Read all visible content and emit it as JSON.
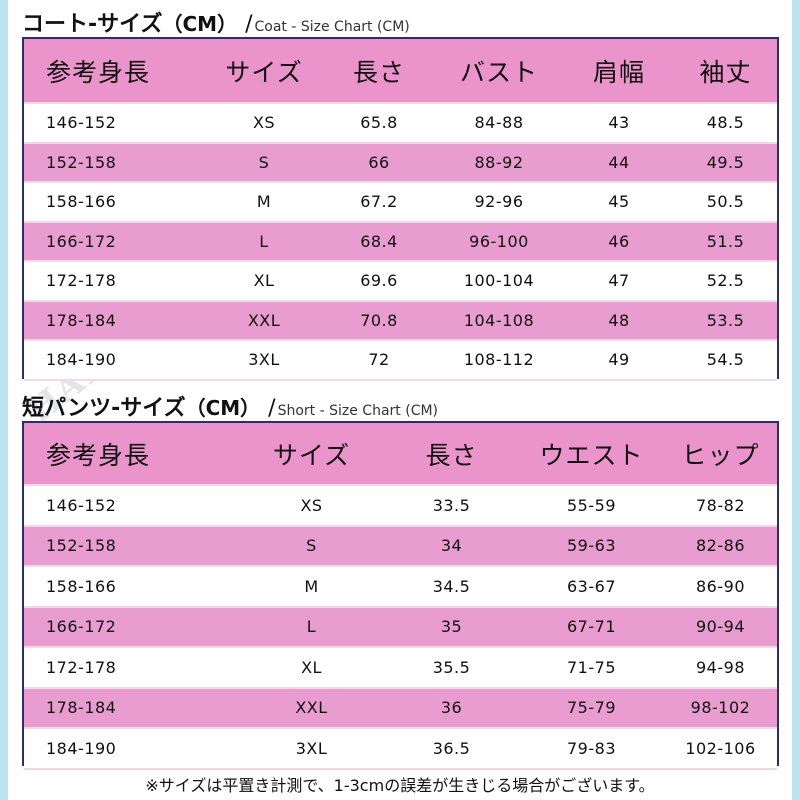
{
  "coat": {
    "title_jp": "コート-サイズ",
    "title_cm": "（CM）",
    "slash": "/",
    "title_en": "Coat - Size Chart (CM)",
    "headers": [
      "参考身長",
      "サイズ",
      "長さ",
      "バスト",
      "肩幅",
      "袖丈"
    ],
    "rows": [
      [
        "146-152",
        "XS",
        "65.8",
        "84-88",
        "43",
        "48.5"
      ],
      [
        "152-158",
        "S",
        "66",
        "88-92",
        "44",
        "49.5"
      ],
      [
        "158-166",
        "M",
        "67.2",
        "92-96",
        "45",
        "50.5"
      ],
      [
        "166-172",
        "L",
        "68.4",
        "96-100",
        "46",
        "51.5"
      ],
      [
        "172-178",
        "XL",
        "69.6",
        "100-104",
        "47",
        "52.5"
      ],
      [
        "178-184",
        "XXL",
        "70.8",
        "104-108",
        "48",
        "53.5"
      ],
      [
        "184-190",
        "3XL",
        "72",
        "108-112",
        "49",
        "54.5"
      ]
    ]
  },
  "shorts": {
    "title_jp": "短パンツ-サイズ",
    "title_cm": "（CM）",
    "slash": "/",
    "title_en": "Short - Size Chart (CM)",
    "headers": [
      "参考身長",
      "サイズ",
      "長さ",
      "ウエスト",
      "ヒップ"
    ],
    "rows": [
      [
        "146-152",
        "XS",
        "33.5",
        "55-59",
        "78-82"
      ],
      [
        "152-158",
        "S",
        "34",
        "59-63",
        "82-86"
      ],
      [
        "158-166",
        "M",
        "34.5",
        "63-67",
        "86-90"
      ],
      [
        "166-172",
        "L",
        "35",
        "67-71",
        "90-94"
      ],
      [
        "172-178",
        "XL",
        "35.5",
        "71-75",
        "94-98"
      ],
      [
        "178-184",
        "XXL",
        "36",
        "75-79",
        "98-102"
      ],
      [
        "184-190",
        "3XL",
        "36.5",
        "79-83",
        "102-106"
      ]
    ]
  },
  "footnote": "※サイズは平置き計測で、1-3cmの誤差が生きじる場合がございます。",
  "watermark": "HAPPYLAND",
  "colors": {
    "header_pink": "#eb94cb",
    "row_pink": "#e89cd0",
    "border_navy": "#2a2e6a",
    "side_band": "#bfe4ef"
  }
}
